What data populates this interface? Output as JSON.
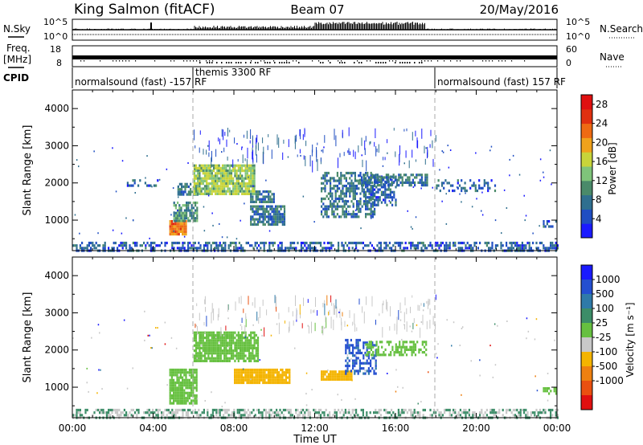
{
  "header": {
    "station": "King Salmon (fitACF)",
    "beam": "Beam 07",
    "date": "20/May/2016"
  },
  "params_panel": {
    "nsky_label": "N.Sky",
    "nsearch_label": "N.Search",
    "noise_ticks_left": [
      "10^5",
      "10^0"
    ],
    "noise_ticks_right": [
      "10^5",
      "10^0"
    ],
    "freq_label": "Freq.",
    "freq_unit": "[MHz]",
    "freq_ticks": [
      "18",
      "8"
    ],
    "nave_label": "Nave",
    "nave_ticks": [
      "60",
      "0"
    ],
    "cpid_label": "CPID",
    "cpid_segments": [
      {
        "name": "normalsound (fast) -157 RF",
        "start": "00:00",
        "end": "06:00"
      },
      {
        "name": "themis 3300 RF",
        "start": "06:00",
        "end": "18:00"
      },
      {
        "name": "normalsound (fast) 157 RF",
        "start": "18:00",
        "end": "24:00"
      }
    ]
  },
  "colors": {
    "power_scale": [
      "#1a1aff",
      "#1f4ec2",
      "#2f6f8f",
      "#4a8a6a",
      "#7fc47a",
      "#c8d43a",
      "#f0a21c",
      "#ee6a13",
      "#e03010",
      "#e01010"
    ],
    "velocity_scale": [
      "#1a1aff",
      "#244fd0",
      "#2f7aa8",
      "#3c8d68",
      "#66c040",
      "#c8c8c8",
      "#f4b400",
      "#ee8010",
      "#ea5010",
      "#e01010"
    ]
  },
  "chart_data": [
    {
      "type": "heatmap",
      "title": "",
      "xlabel": "",
      "ylabel": "Slant Range [km]",
      "x_ticks": [
        "00:00",
        "04:00",
        "08:00",
        "12:00",
        "16:00",
        "20:00",
        "00:00"
      ],
      "x_range_hours": [
        0,
        24
      ],
      "y_ticks": [
        1000,
        2000,
        3000,
        4000
      ],
      "ylim": [
        180,
        4500
      ],
      "colorbar": {
        "label": "Power [dB]",
        "ticks": [
          4,
          8,
          12,
          16,
          20,
          24,
          28
        ],
        "range": [
          0,
          30
        ]
      },
      "regions": [
        {
          "t0": 0.0,
          "t1": 24.0,
          "r0": 180,
          "r1": 420,
          "value": 6,
          "density": 0.5,
          "note": "ground scatter band"
        },
        {
          "t0": 4.8,
          "t1": 5.6,
          "r0": 600,
          "r1": 1000,
          "value": 22,
          "density": 0.95
        },
        {
          "t0": 5.0,
          "t1": 6.2,
          "r0": 1000,
          "r1": 1500,
          "value": 10,
          "density": 0.8
        },
        {
          "t0": 5.2,
          "t1": 6.2,
          "r0": 1700,
          "r1": 2000,
          "value": 8,
          "density": 0.6
        },
        {
          "t0": 6.0,
          "t1": 9.0,
          "r0": 1700,
          "r1": 2500,
          "value": 14,
          "density": 0.9
        },
        {
          "t0": 8.8,
          "t1": 10.0,
          "r0": 1500,
          "r1": 1800,
          "value": 8,
          "density": 0.7
        },
        {
          "t0": 8.8,
          "t1": 10.5,
          "r0": 900,
          "r1": 1400,
          "value": 8,
          "density": 0.8
        },
        {
          "t0": 12.3,
          "t1": 15.0,
          "r0": 1100,
          "r1": 2300,
          "value": 8,
          "density": 0.55
        },
        {
          "t0": 14.4,
          "t1": 16.0,
          "r0": 1400,
          "r1": 2200,
          "value": 6,
          "density": 0.5
        },
        {
          "t0": 14.2,
          "t1": 17.6,
          "r0": 1950,
          "r1": 2250,
          "value": 8,
          "density": 0.6
        },
        {
          "t0": 2.7,
          "t1": 4.2,
          "r0": 1900,
          "r1": 2100,
          "value": 6,
          "density": 0.4
        },
        {
          "t0": 18.0,
          "t1": 21.0,
          "r0": 1800,
          "r1": 2100,
          "value": 6,
          "density": 0.3
        },
        {
          "t0": 23.3,
          "t1": 24.0,
          "r0": 800,
          "r1": 1000,
          "value": 6,
          "density": 0.5
        }
      ]
    },
    {
      "type": "heatmap",
      "title": "",
      "xlabel": "Time UT",
      "ylabel": "Slant Range [km]",
      "x_ticks": [
        "00:00",
        "04:00",
        "08:00",
        "12:00",
        "16:00",
        "20:00",
        "00:00"
      ],
      "x_range_hours": [
        0,
        24
      ],
      "y_ticks": [
        1000,
        2000,
        3000,
        4000
      ],
      "ylim": [
        180,
        4500
      ],
      "colorbar": {
        "label": "Velocity [m s⁻¹]",
        "ticks": [
          1000,
          500,
          100,
          25,
          -25,
          -100,
          -500,
          -1000
        ]
      },
      "regions": [
        {
          "t0": 0.0,
          "t1": 24.0,
          "r0": 180,
          "r1": 420,
          "value": 50,
          "density": 0.5,
          "note": "ground scatter band"
        },
        {
          "t0": 4.8,
          "t1": 6.2,
          "r0": 600,
          "r1": 1500,
          "value": 0,
          "density": 0.85
        },
        {
          "t0": 6.0,
          "t1": 9.2,
          "r0": 1700,
          "r1": 2500,
          "value": 0,
          "density": 0.85
        },
        {
          "t0": 8.0,
          "t1": 10.8,
          "r0": 1150,
          "r1": 1500,
          "value": -300,
          "density": 0.9
        },
        {
          "t0": 12.3,
          "t1": 13.8,
          "r0": 1200,
          "r1": 1450,
          "value": -200,
          "density": 0.9
        },
        {
          "t0": 13.5,
          "t1": 15.0,
          "r0": 1350,
          "r1": 2300,
          "value": 600,
          "density": 0.5
        },
        {
          "t0": 14.5,
          "t1": 17.5,
          "r0": 1900,
          "r1": 2250,
          "value": 0,
          "density": 0.5
        },
        {
          "t0": 23.3,
          "t1": 24.0,
          "r0": 800,
          "r1": 1000,
          "value": 0,
          "density": 0.5
        }
      ]
    }
  ]
}
